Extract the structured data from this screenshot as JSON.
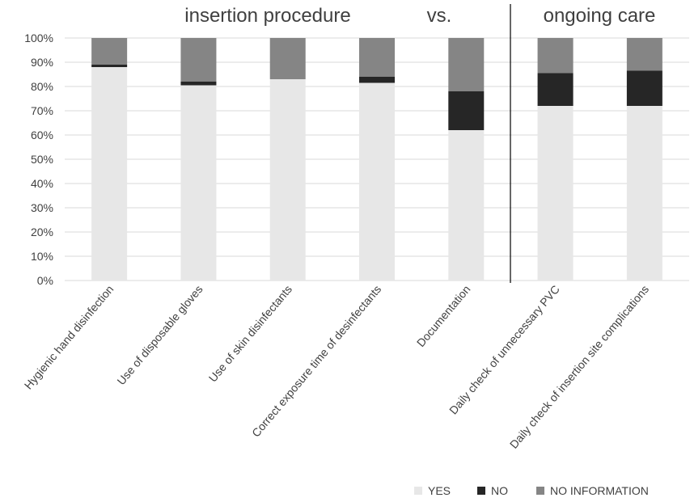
{
  "chart_data": {
    "type": "bar",
    "stacked": "percent",
    "header_labels": {
      "left": "insertion procedure",
      "middle": "vs.",
      "right": "ongoing care"
    },
    "categories": [
      "Hygienic hand disinfection",
      "Use of disposable gloves",
      "Use of skin disinfectants",
      "Correct exposure time of desinfectants",
      "Documentation",
      "Daily check of unnecessary PVC",
      "Daily check of insertion site complications"
    ],
    "series": [
      {
        "name": "YES",
        "color": "#e7e7e7",
        "values": [
          88,
          80.5,
          83,
          81.5,
          62,
          72,
          72
        ]
      },
      {
        "name": "NO",
        "color": "#262626",
        "values": [
          1,
          1.5,
          0,
          2.5,
          16,
          13.5,
          14.5
        ]
      },
      {
        "name": "NO INFORMATION",
        "color": "#858585",
        "values": [
          11,
          18,
          17,
          16,
          22,
          14.5,
          13.5
        ]
      }
    ],
    "ylim": [
      0,
      100
    ],
    "yticks": [
      "0%",
      "10%",
      "20%",
      "30%",
      "40%",
      "50%",
      "60%",
      "70%",
      "80%",
      "90%",
      "100%"
    ],
    "grid": true,
    "legend_position": "bottom-right",
    "divider_after_category": 5
  }
}
